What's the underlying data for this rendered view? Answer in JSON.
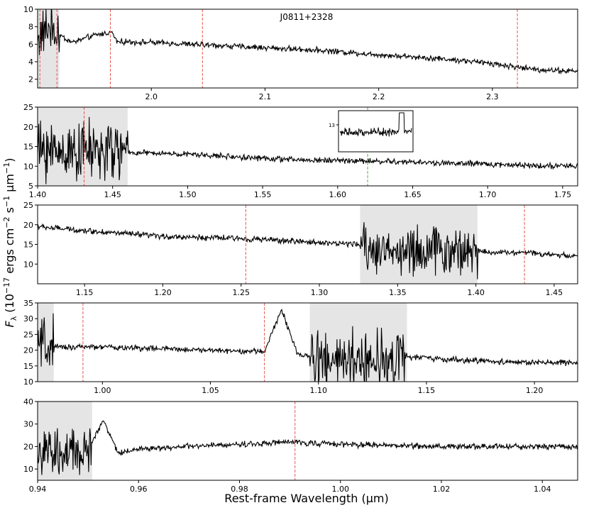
{
  "figure": {
    "title": "J0811+2328",
    "xlabel": "Rest-frame Wavelength (μm)",
    "ylabel": "F_λ (10^-17 ergs cm^-2 s^-1 μm^-1)",
    "ylabel_parts": {
      "prefix": "F",
      "sub": "λ",
      "open": " (10",
      "e1": "−17",
      "mid1": " ergs cm",
      "e2": "−2",
      "mid2": " s",
      "e3": "−1",
      "mid3": " μm",
      "e4": "−1",
      "close": ")"
    },
    "colors": {
      "spectrum": "#000000",
      "band": "#e5e5e5",
      "marker": "#e8584f",
      "inset_marker": "#4caf50"
    }
  },
  "chart_data": [
    {
      "type": "line",
      "title": "J0811+2328",
      "xlim": [
        1.9,
        2.375
      ],
      "ylim": [
        1,
        10
      ],
      "xticks": [
        2.0,
        2.1,
        2.2,
        2.3
      ],
      "xtick_labels": [
        "2.0",
        "2.1",
        "2.2",
        "2.3"
      ],
      "yticks": [
        2,
        4,
        6,
        8,
        10
      ],
      "ytick_labels": [
        "2",
        "4",
        "6",
        "8",
        "10"
      ],
      "shaded_regions": [
        [
          1.9,
          1.919
        ]
      ],
      "marker_lines": [
        1.902,
        1.917,
        1.964,
        2.045,
        2.322
      ],
      "series": [
        {
          "name": "",
          "x": [
            1.9,
            1.91,
            1.92,
            1.93,
            1.95,
            1.965,
            1.97,
            2.0,
            2.05,
            2.1,
            2.15,
            2.2,
            2.25,
            2.3,
            2.32,
            2.34,
            2.375
          ],
          "y": [
            6.5,
            8.0,
            7.0,
            6.2,
            7.0,
            7.4,
            6.3,
            6.2,
            5.9,
            5.6,
            5.3,
            4.8,
            4.4,
            3.8,
            3.4,
            3.1,
            2.9
          ]
        }
      ]
    },
    {
      "type": "line",
      "xlim": [
        1.4,
        1.76
      ],
      "ylim": [
        5,
        25
      ],
      "xticks": [
        1.4,
        1.45,
        1.5,
        1.55,
        1.6,
        1.65,
        1.7,
        1.75
      ],
      "xtick_labels": [
        "1.40",
        "1.45",
        "1.50",
        "1.55",
        "1.60",
        "1.65",
        "1.70",
        "1.75"
      ],
      "yticks": [
        5,
        10,
        15,
        20,
        25
      ],
      "ytick_labels": [
        "5",
        "10",
        "15",
        "20",
        "25"
      ],
      "shaded_regions": [
        [
          1.4,
          1.46
        ]
      ],
      "marker_lines": [
        1.431
      ],
      "inset_marker_lines": [
        1.62
      ],
      "inset": {
        "ytick_labels": [
          "13"
        ]
      },
      "series": [
        {
          "name": "",
          "x": [
            1.4,
            1.43,
            1.46,
            1.5,
            1.55,
            1.58,
            1.6,
            1.65,
            1.7,
            1.75,
            1.76
          ],
          "y": [
            14.0,
            14.0,
            13.5,
            13.0,
            12.0,
            11.5,
            11.5,
            11.0,
            10.5,
            10.0,
            10.0
          ]
        }
      ]
    },
    {
      "type": "line",
      "xlim": [
        1.12,
        1.465
      ],
      "ylim": [
        5,
        25
      ],
      "xticks": [
        1.15,
        1.2,
        1.25,
        1.3,
        1.35,
        1.4,
        1.45
      ],
      "xtick_labels": [
        "1.15",
        "1.20",
        "1.25",
        "1.30",
        "1.35",
        "1.40",
        "1.45"
      ],
      "yticks": [
        10,
        15,
        20,
        25
      ],
      "ytick_labels": [
        "10",
        "15",
        "20",
        "25"
      ],
      "shaded_regions": [
        [
          1.326,
          1.401
        ]
      ],
      "marker_lines": [
        1.253,
        1.431
      ],
      "series": [
        {
          "name": "",
          "x": [
            1.12,
            1.15,
            1.2,
            1.25,
            1.3,
            1.325,
            1.335,
            1.4,
            1.41,
            1.43,
            1.465
          ],
          "y": [
            19.5,
            18.5,
            17.0,
            16.5,
            15.5,
            15.0,
            13.5,
            13.5,
            13.0,
            13.0,
            12.0
          ]
        }
      ]
    },
    {
      "type": "line",
      "xlim": [
        0.97,
        1.22
      ],
      "ylim": [
        10,
        35
      ],
      "xticks": [
        1.0,
        1.05,
        1.1,
        1.15,
        1.2
      ],
      "xtick_labels": [
        "1.00",
        "1.05",
        "1.10",
        "1.15",
        "1.20"
      ],
      "yticks": [
        10,
        15,
        20,
        25,
        30,
        35
      ],
      "ytick_labels": [
        "10",
        "15",
        "20",
        "25",
        "30",
        "35"
      ],
      "shaded_regions": [
        [
          0.97,
          0.9775
        ],
        [
          1.096,
          1.141
        ]
      ],
      "marker_lines": [
        0.991,
        1.075
      ],
      "series": [
        {
          "name": "",
          "x": [
            0.97,
            1.0,
            1.05,
            1.075,
            1.083,
            1.09,
            1.1,
            1.12,
            1.14,
            1.16,
            1.2,
            1.22
          ],
          "y": [
            21.0,
            21.0,
            20.0,
            19.5,
            33.0,
            19.0,
            17.0,
            17.0,
            18.0,
            17.0,
            16.0,
            16.0
          ]
        }
      ]
    },
    {
      "type": "line",
      "xlim": [
        0.94,
        1.047
      ],
      "ylim": [
        5,
        40
      ],
      "xticks": [
        0.94,
        0.96,
        0.98,
        1.0,
        1.02,
        1.04
      ],
      "xtick_labels": [
        "0.94",
        "0.96",
        "0.98",
        "1.00",
        "1.02",
        "1.04"
      ],
      "yticks": [
        10,
        20,
        30,
        40
      ],
      "ytick_labels": [
        "10",
        "20",
        "30",
        "40"
      ],
      "shaded_regions": [
        [
          0.94,
          0.9508
        ]
      ],
      "marker_lines": [
        0.991
      ],
      "series": [
        {
          "name": "",
          "x": [
            0.94,
            0.945,
            0.95,
            0.953,
            0.956,
            0.96,
            0.98,
            0.99,
            1.0,
            1.02,
            1.04,
            1.047
          ],
          "y": [
            18.0,
            15.0,
            18.0,
            32.0,
            17.0,
            19.0,
            21.0,
            22.0,
            21.0,
            20.0,
            20.0,
            20.0
          ]
        }
      ]
    }
  ]
}
